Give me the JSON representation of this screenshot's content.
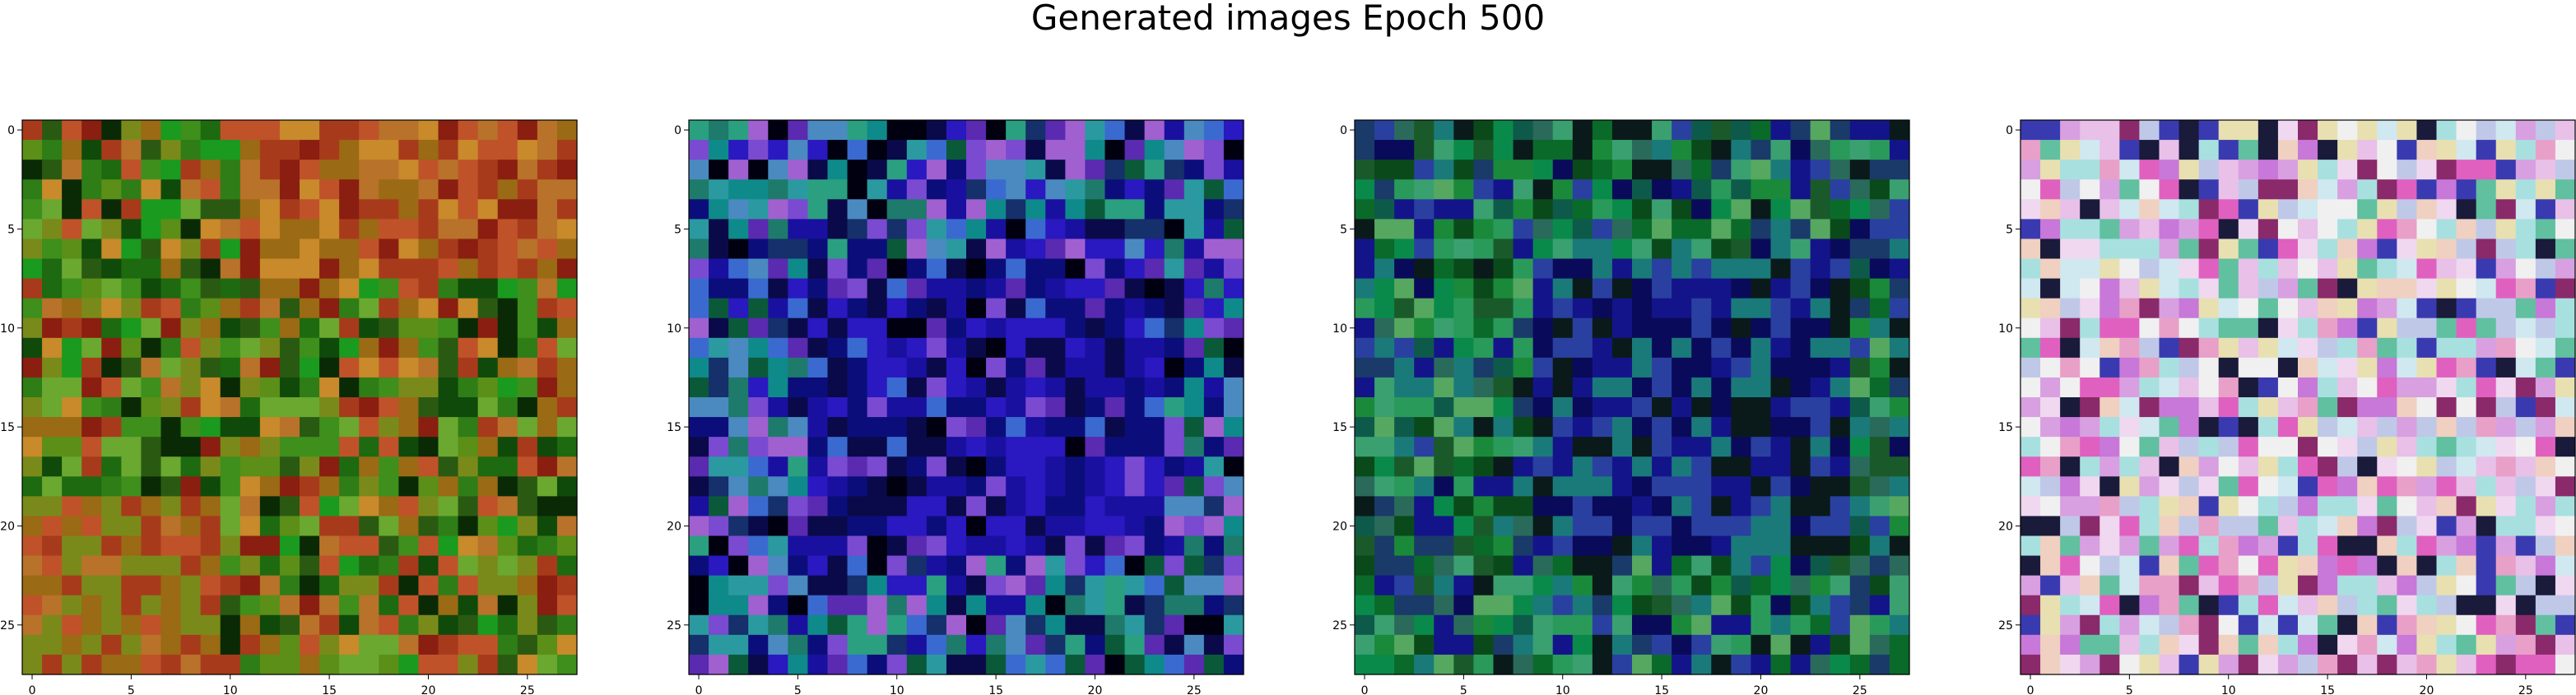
{
  "figure": {
    "title": "Generated images Epoch 500"
  },
  "chart_data": [
    {
      "type": "heatmap",
      "subject": "generated image 1",
      "grid": [
        28,
        28
      ],
      "xticks": [
        0,
        5,
        10,
        15,
        20,
        25
      ],
      "yticks": [
        0,
        5,
        10,
        15,
        20,
        25
      ],
      "xlim": [
        -0.5,
        27.5
      ],
      "ylim": [
        27.5,
        -0.5
      ],
      "palette": [
        "#1e6a10",
        "#2f7d16",
        "#0f4a0a",
        "#3e8f1c",
        "#5b8f18",
        "#7a8a1a",
        "#9a6a14",
        "#b8722a",
        "#c0522a",
        "#a83a1c",
        "#8a1e10",
        "#c88a2a",
        "#1a9a1e",
        "#0a2a06",
        "#6aa830",
        "#2a5a12"
      ]
    },
    {
      "type": "heatmap",
      "subject": "generated image 2",
      "grid": [
        28,
        28
      ],
      "xticks": [
        0,
        5,
        10,
        15,
        20,
        25
      ],
      "yticks": [
        0,
        5,
        10,
        15,
        20,
        25
      ],
      "xlim": [
        -0.5,
        27.5
      ],
      "ylim": [
        27.5,
        -0.5
      ],
      "palette": [
        "#0b0e7a",
        "#1a10a0",
        "#2a18c0",
        "#0a0a4a",
        "#1e7a6a",
        "#2a9aa0",
        "#3a6ad0",
        "#5a2ab0",
        "#7a4ad0",
        "#000010",
        "#0a5a3a",
        "#2aa080",
        "#4a8ac0",
        "#a060d0",
        "#15306a",
        "#0e8a8a"
      ]
    },
    {
      "type": "heatmap",
      "subject": "generated image 3",
      "grid": [
        28,
        28
      ],
      "xticks": [
        0,
        5,
        10,
        15,
        20,
        25
      ],
      "yticks": [
        0,
        5,
        10,
        15,
        20,
        25
      ],
      "xlim": [
        -0.5,
        27.5
      ],
      "ylim": [
        27.5,
        -0.5
      ],
      "palette": [
        "#0a6a2a",
        "#1a8a3a",
        "#0a4a1a",
        "#2a9a5a",
        "#0e5a4a",
        "#1a7a7a",
        "#0a0a5a",
        "#14148a",
        "#2a40a0",
        "#0a1a1a",
        "#3aa070",
        "#56a860",
        "#1a3a6a",
        "#0a8a4a",
        "#2a6a5a",
        "#1a5a2a"
      ]
    },
    {
      "type": "heatmap",
      "subject": "generated image 4",
      "grid": [
        28,
        28
      ],
      "xticks": [
        0,
        5,
        10,
        15,
        20,
        25
      ],
      "yticks": [
        0,
        5,
        10,
        15,
        20,
        25
      ],
      "xlim": [
        -0.5,
        27.5
      ],
      "ylim": [
        27.5,
        -0.5
      ],
      "palette": [
        "#f0d8f0",
        "#e8c0e8",
        "#d8a0e0",
        "#c878d8",
        "#e060c0",
        "#f0f0f0",
        "#d0e8f0",
        "#a8e0e0",
        "#c0c8e8",
        "#f0d0c0",
        "#e8e0b0",
        "#8a2a6a",
        "#1a1a3a",
        "#3a3ab0",
        "#60c0a0",
        "#e8a0c8"
      ]
    }
  ]
}
